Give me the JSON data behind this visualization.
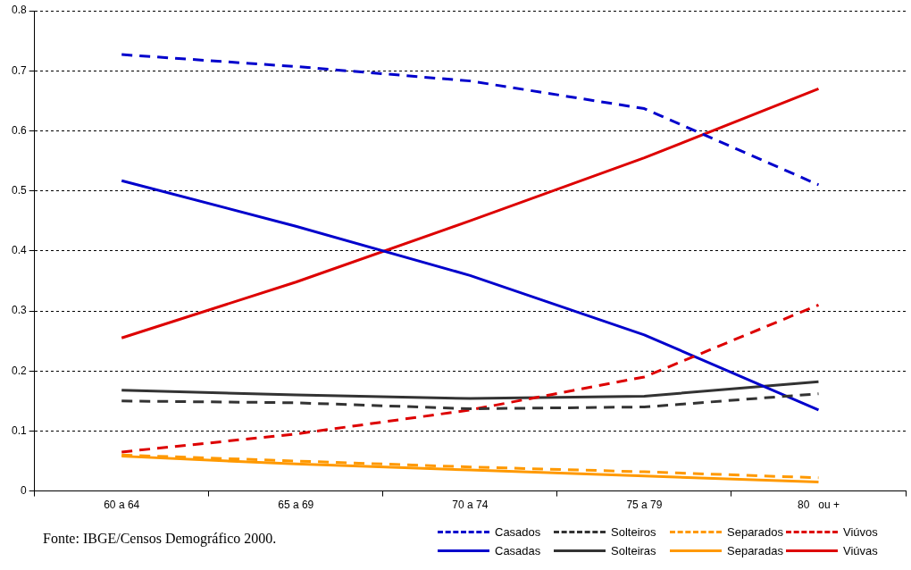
{
  "chart_data": {
    "type": "line",
    "categories": [
      "60 a 64",
      "65 a 69",
      "70 a 74",
      "75 a 79",
      "80   ou +"
    ],
    "ylim": [
      0,
      0.8
    ],
    "yticks": [
      0,
      0.1,
      0.2,
      0.3,
      0.4,
      0.5,
      0.6,
      0.7,
      0.8
    ],
    "grid": "y",
    "legend": "bottom right",
    "marker": "none",
    "annotations": [
      "Fonte: IBGE/Censos Demográfico 2000."
    ],
    "series": [
      {
        "name": "Casados",
        "color": "#0000cc",
        "line_style": "dashed",
        "values": [
          0.727,
          0.707,
          0.683,
          0.637,
          0.51
        ]
      },
      {
        "name": "Solteiros",
        "color": "#333333",
        "line_style": "dashed",
        "values": [
          0.15,
          0.147,
          0.137,
          0.14,
          0.162
        ]
      },
      {
        "name": "Separados",
        "color": "#ff9900",
        "line_style": "dashed",
        "values": [
          0.06,
          0.05,
          0.04,
          0.032,
          0.022
        ]
      },
      {
        "name": "Viúvos",
        "color": "#dd0000",
        "line_style": "dashed",
        "values": [
          0.065,
          0.095,
          0.135,
          0.19,
          0.31
        ]
      },
      {
        "name": "Casadas",
        "color": "#0000cc",
        "line_style": "solid",
        "values": [
          0.517,
          0.441,
          0.359,
          0.26,
          0.135
        ]
      },
      {
        "name": "Solteiras",
        "color": "#333333",
        "line_style": "solid",
        "values": [
          0.168,
          0.16,
          0.154,
          0.158,
          0.182
        ]
      },
      {
        "name": "Separadas",
        "color": "#ff9900",
        "line_style": "solid",
        "values": [
          0.058,
          0.045,
          0.035,
          0.025,
          0.015
        ]
      },
      {
        "name": "Viúvas",
        "color": "#dd0000",
        "line_style": "solid",
        "values": [
          0.255,
          0.348,
          0.45,
          0.555,
          0.67
        ]
      }
    ]
  }
}
